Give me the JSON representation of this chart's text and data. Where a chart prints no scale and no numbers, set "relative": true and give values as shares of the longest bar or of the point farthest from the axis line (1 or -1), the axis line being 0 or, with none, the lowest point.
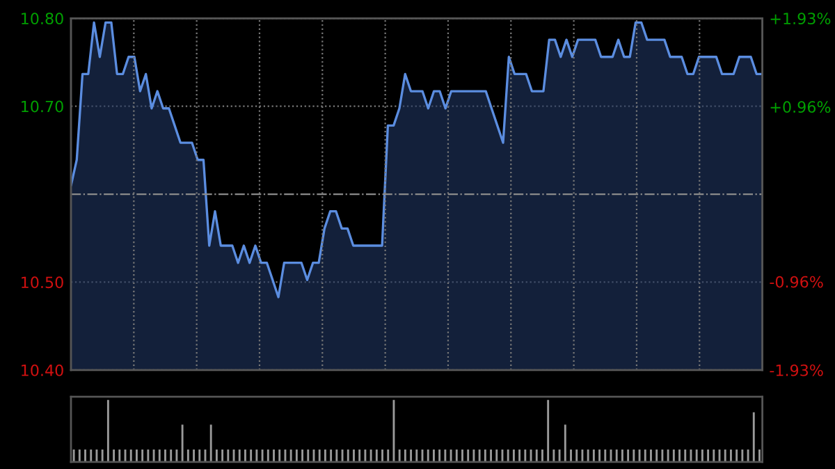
{
  "chart_data": [
    {
      "type": "area",
      "categories": [
        null,
        null,
        null,
        null,
        null,
        null,
        null,
        null,
        null,
        null,
        null,
        null,
        null,
        null,
        null,
        null,
        null,
        null,
        null,
        null,
        null,
        null,
        null,
        null,
        null,
        null,
        null,
        null,
        null,
        null,
        null,
        null,
        null,
        null,
        null,
        null,
        null,
        null,
        null,
        null,
        null,
        null,
        null,
        null,
        null,
        null,
        null,
        null,
        null,
        null,
        null,
        null,
        null,
        null,
        null,
        null,
        null,
        null,
        null,
        null,
        null,
        null,
        null,
        null,
        null,
        null,
        null,
        null,
        null,
        null,
        null,
        null,
        null,
        null,
        null,
        null,
        null,
        null,
        null,
        null,
        null,
        null,
        null,
        null,
        null,
        null,
        null,
        null,
        null,
        null,
        null,
        null,
        null,
        null,
        null,
        null,
        null,
        null,
        null,
        null,
        null,
        null,
        null,
        null,
        null,
        null,
        null,
        null,
        null,
        null,
        null,
        null,
        null,
        null,
        null,
        null,
        null,
        null,
        null,
        null,
        null
      ],
      "series": [
        {
          "color": "#5b8de0",
          "values": [
            10.61,
            10.64,
            10.74,
            10.74,
            10.8,
            10.76,
            10.8,
            10.8,
            10.74,
            10.74,
            10.76,
            10.76,
            10.72,
            10.74,
            10.7,
            10.72,
            10.7,
            10.7,
            10.68,
            10.66,
            10.66,
            10.66,
            10.64,
            10.64,
            10.54,
            10.58,
            10.54,
            10.54,
            10.54,
            10.52,
            10.54,
            10.52,
            10.54,
            10.52,
            10.52,
            10.5,
            10.48,
            10.52,
            10.52,
            10.52,
            10.52,
            10.5,
            10.52,
            10.52,
            10.56,
            10.58,
            10.58,
            10.56,
            10.56,
            10.54,
            10.54,
            10.54,
            10.54,
            10.54,
            10.54,
            10.68,
            10.68,
            10.7,
            10.74,
            10.72,
            10.72,
            10.72,
            10.7,
            10.72,
            10.72,
            10.7,
            10.72,
            10.72,
            10.72,
            10.72,
            10.72,
            10.72,
            10.72,
            10.7,
            10.68,
            10.66,
            10.76,
            10.74,
            10.74,
            10.74,
            10.72,
            10.72,
            10.72,
            10.78,
            10.78,
            10.76,
            10.78,
            10.76,
            10.78,
            10.78,
            10.78,
            10.78,
            10.76,
            10.76,
            10.76,
            10.78,
            10.76,
            10.76,
            10.8,
            10.8,
            10.78,
            10.78,
            10.78,
            10.78,
            10.76,
            10.76,
            10.76,
            10.74,
            10.74,
            10.76,
            10.76,
            10.76,
            10.76,
            10.74,
            10.74,
            10.74,
            10.76,
            10.76,
            10.76,
            10.74,
            10.74
          ]
        }
      ],
      "ylim": [
        10.395,
        10.805
      ],
      "yticks": [
        {
          "value": 10.805,
          "label": "10.80"
        },
        {
          "value": 10.7025,
          "label": "10.70"
        },
        {
          "value": 10.4975,
          "label": "10.50"
        },
        {
          "value": 10.395,
          "label": "10.40"
        }
      ],
      "y2lim": [
        -1.93,
        1.93
      ],
      "y2ticks": [
        {
          "value": 1.93,
          "label": "+1.93%"
        },
        {
          "value": 0.96,
          "label": "+0.96%"
        },
        {
          "value": -0.96,
          "label": "-0.96%"
        },
        {
          "value": -1.93,
          "label": "-1.93%"
        }
      ],
      "ref_lines": [
        {
          "axis": "y",
          "value": 10.6,
          "line_style": "dashdot",
          "color": "#8a8a8a"
        }
      ],
      "grid": true,
      "line_style": "solid"
    },
    {
      "type": "bar",
      "relative": true,
      "categories": [
        null,
        null,
        null,
        null,
        null,
        null,
        null,
        null,
        null,
        null,
        null,
        null,
        null,
        null,
        null,
        null,
        null,
        null,
        null,
        null,
        null,
        null,
        null,
        null,
        null,
        null,
        null,
        null,
        null,
        null,
        null,
        null,
        null,
        null,
        null,
        null,
        null,
        null,
        null,
        null,
        null,
        null,
        null,
        null,
        null,
        null,
        null,
        null,
        null,
        null,
        null,
        null,
        null,
        null,
        null,
        null,
        null,
        null,
        null,
        null,
        null,
        null,
        null,
        null,
        null,
        null,
        null,
        null,
        null,
        null,
        null,
        null,
        null,
        null,
        null,
        null,
        null,
        null,
        null,
        null,
        null,
        null,
        null,
        null,
        null,
        null,
        null,
        null,
        null,
        null,
        null,
        null,
        null,
        null,
        null,
        null,
        null,
        null,
        null,
        null,
        null,
        null,
        null,
        null,
        null,
        null,
        null,
        null,
        null,
        null,
        null,
        null,
        null,
        null,
        null,
        null,
        null,
        null,
        null,
        null,
        null
      ],
      "series": [
        {
          "color": "#9a9a9a",
          "values": [
            0.2,
            0.2,
            0.2,
            0.2,
            0.2,
            0.2,
            1,
            0.2,
            0.2,
            0.2,
            0.2,
            0.2,
            0.2,
            0.2,
            0.2,
            0.2,
            0.2,
            0.2,
            0.2,
            0.6,
            0.2,
            0.2,
            0.2,
            0.2,
            0.6,
            0.2,
            0.2,
            0.2,
            0.2,
            0.2,
            0.2,
            0.2,
            0.2,
            0.2,
            0.2,
            0.2,
            0.2,
            0.2,
            0.2,
            0.2,
            0.2,
            0.2,
            0.2,
            0.2,
            0.2,
            0.2,
            0.2,
            0.2,
            0.2,
            0.2,
            0.2,
            0.2,
            0.2,
            0.2,
            0.2,
            0.2,
            1,
            0.2,
            0.2,
            0.2,
            0.2,
            0.2,
            0.2,
            0.2,
            0.2,
            0.2,
            0.2,
            0.2,
            0.2,
            0.2,
            0.2,
            0.2,
            0.2,
            0.2,
            0.2,
            0.2,
            0.2,
            0.2,
            0.2,
            0.2,
            0.2,
            0.2,
            0.2,
            1,
            0.2,
            0.2,
            0.6,
            0.2,
            0.2,
            0.2,
            0.2,
            0.2,
            0.2,
            0.2,
            0.2,
            0.2,
            0.2,
            0.2,
            0.2,
            0.2,
            0.2,
            0.2,
            0.2,
            0.2,
            0.2,
            0.2,
            0.2,
            0.2,
            0.2,
            0.2,
            0.2,
            0.2,
            0.2,
            0.2,
            0.2,
            0.2,
            0.2,
            0.2,
            0.2,
            0.8,
            0.2
          ]
        }
      ]
    }
  ]
}
